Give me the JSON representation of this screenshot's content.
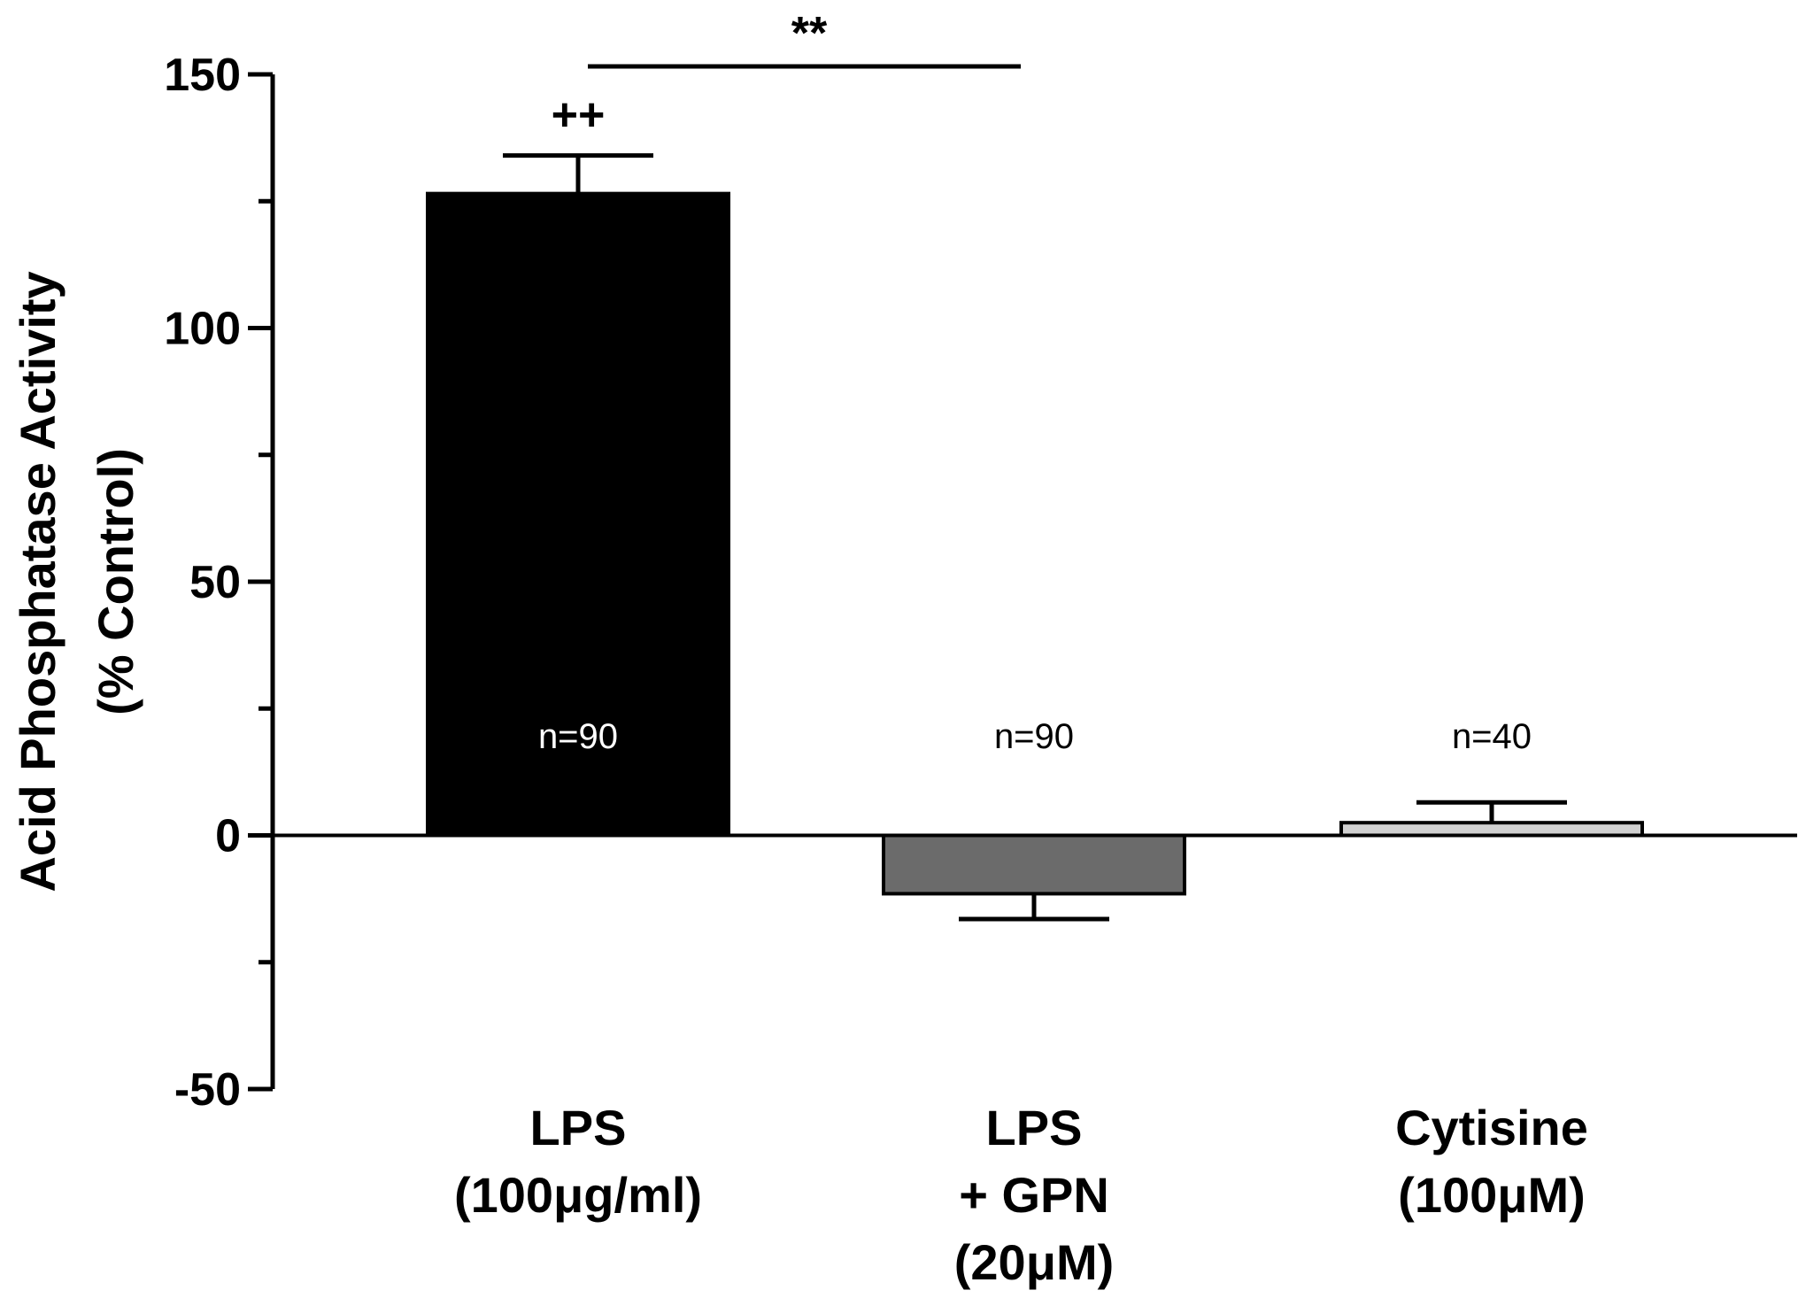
{
  "chart_data": {
    "type": "bar",
    "ylabel": [
      "Acid Phosphatase Activity",
      "(% Control)"
    ],
    "ylim": [
      -50,
      150
    ],
    "yticks": [
      -50,
      0,
      50,
      100,
      150
    ],
    "grid": false,
    "categories": [
      {
        "lines": [
          "LPS",
          "(100μg/ml)"
        ]
      },
      {
        "lines": [
          "LPS",
          "+ GPN",
          "(20μM)"
        ]
      },
      {
        "lines": [
          "Cytisine",
          "(100μM)"
        ]
      }
    ],
    "values": [
      126.5,
      -11.5,
      2.5
    ],
    "errors": [
      7.5,
      5.0,
      4.0
    ],
    "n_labels": [
      "n=90",
      "n=90",
      "n=40"
    ],
    "colors": [
      "#000000",
      "#6b6b6b",
      "#d0d0d0"
    ],
    "n_label_colors": [
      "#ffffff",
      "#000000",
      "#000000"
    ],
    "annotations": {
      "bar_marker": {
        "text": "++",
        "category_index": 0
      },
      "comparison": {
        "text": "**",
        "from_index": 0,
        "to_index": 1
      }
    }
  }
}
